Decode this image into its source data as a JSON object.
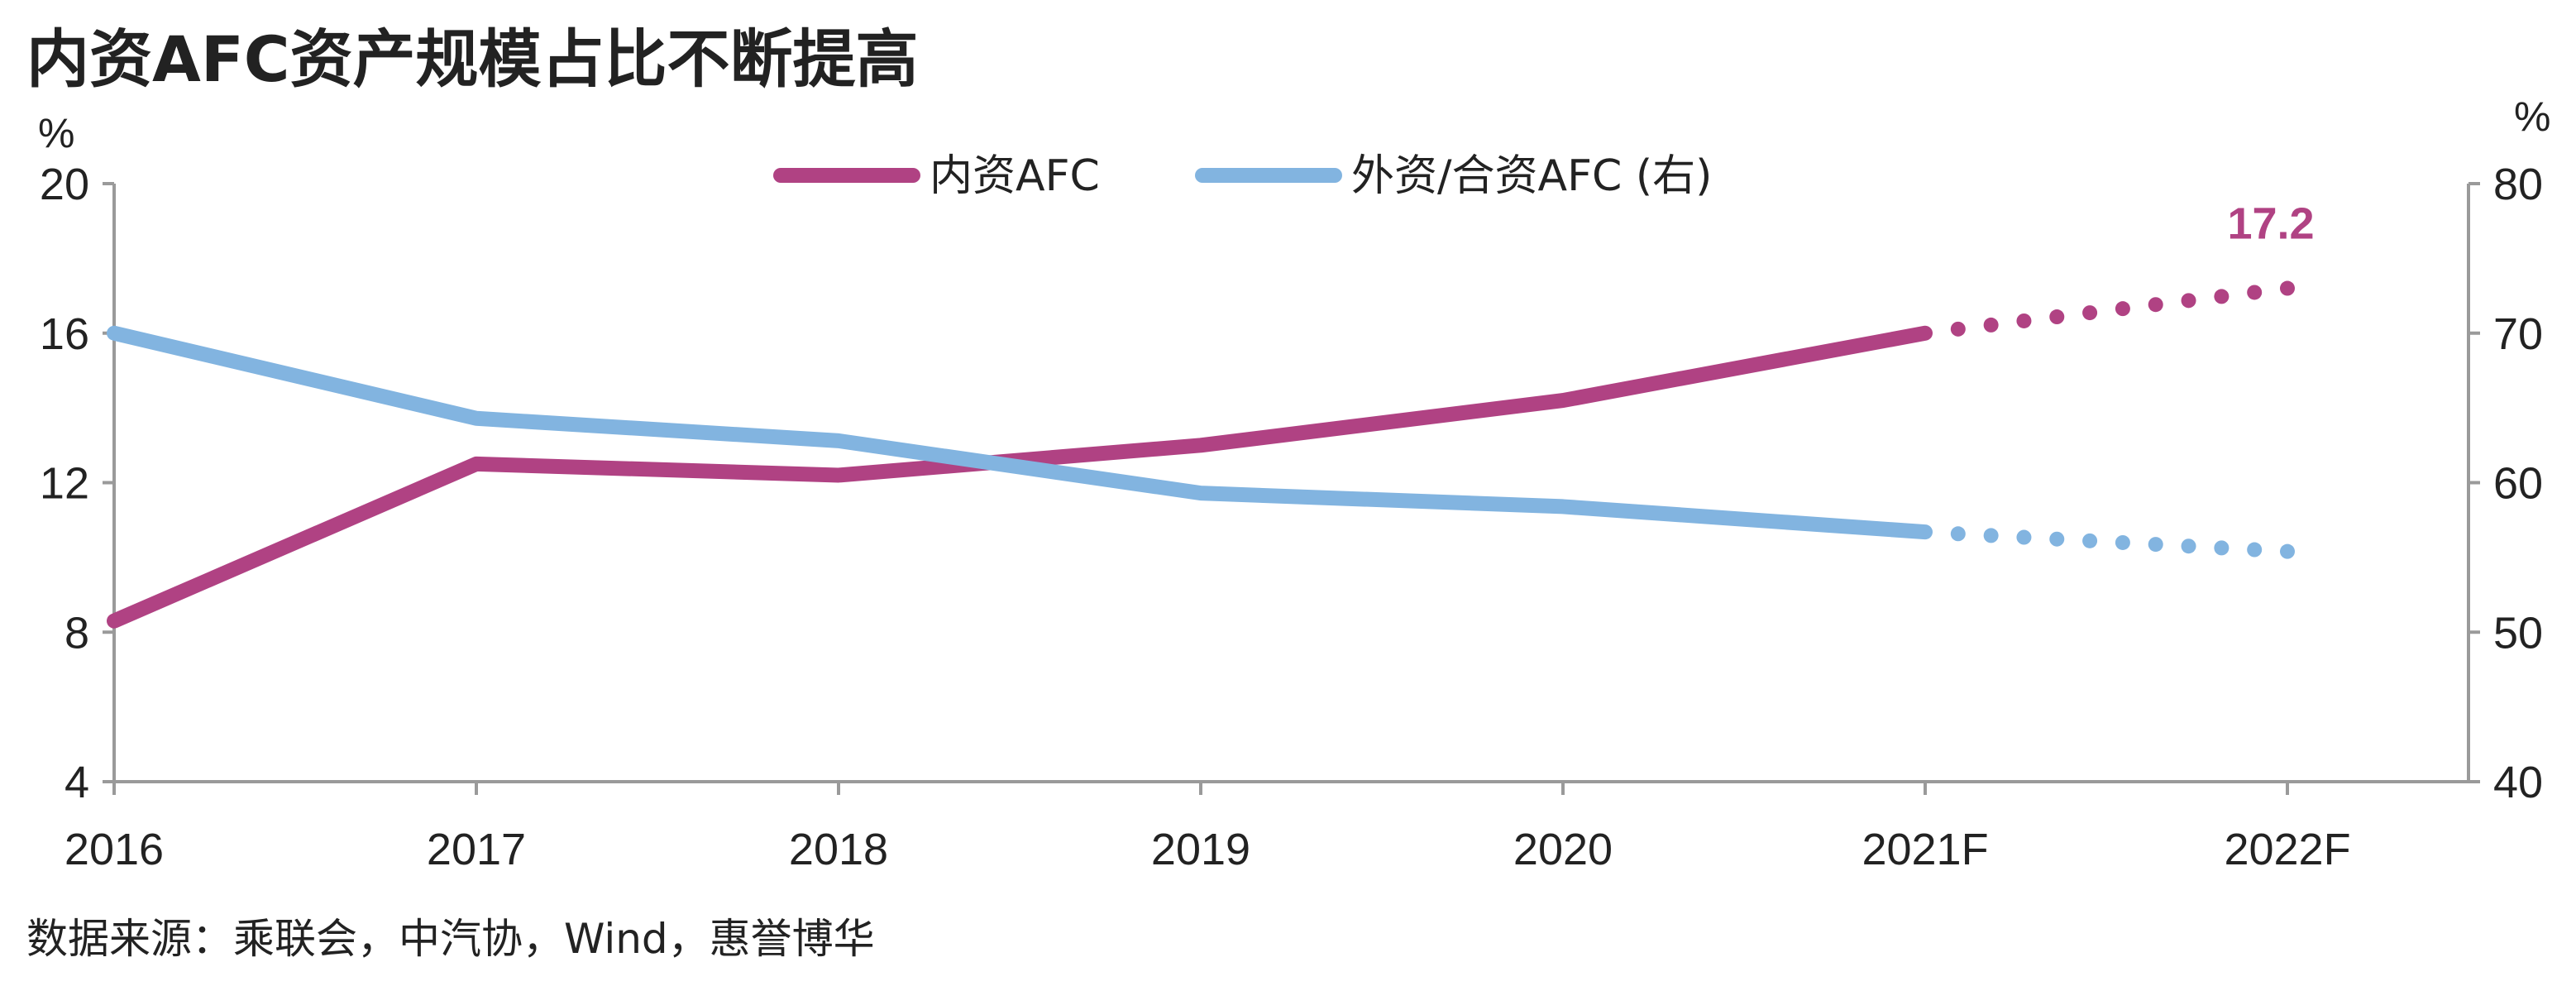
{
  "chart_data": {
    "type": "line",
    "title": "内资AFC资产规模占比不断提高",
    "source": "数据来源：乘联会，中汽协，Wind，惠誉博华",
    "categories": [
      "2016",
      "2017",
      "2018",
      "2019",
      "2020",
      "2021F",
      "2022F"
    ],
    "left_axis": {
      "unit": "%",
      "range": [
        4,
        20
      ],
      "ticks": [
        "20",
        "16",
        "12",
        "8",
        "4"
      ]
    },
    "right_axis": {
      "unit": "%",
      "range": [
        40,
        80
      ],
      "ticks": [
        "80",
        "70",
        "60",
        "50",
        "40"
      ]
    },
    "legend_position": "top-center",
    "grid": false,
    "series": [
      {
        "name": "内资AFC",
        "axis": "left",
        "color": "#B04283",
        "values": [
          8.3,
          12.5,
          12.2,
          13.0,
          14.2,
          16.0,
          17.2
        ],
        "forecast_from_index": 5,
        "callout": "17.2"
      },
      {
        "name": "外资/合资AFC (右)",
        "axis": "right",
        "color": "#82B4E0",
        "values": [
          70.0,
          64.3,
          62.8,
          59.3,
          58.4,
          56.7,
          55.4
        ],
        "forecast_from_index": 5
      }
    ]
  }
}
